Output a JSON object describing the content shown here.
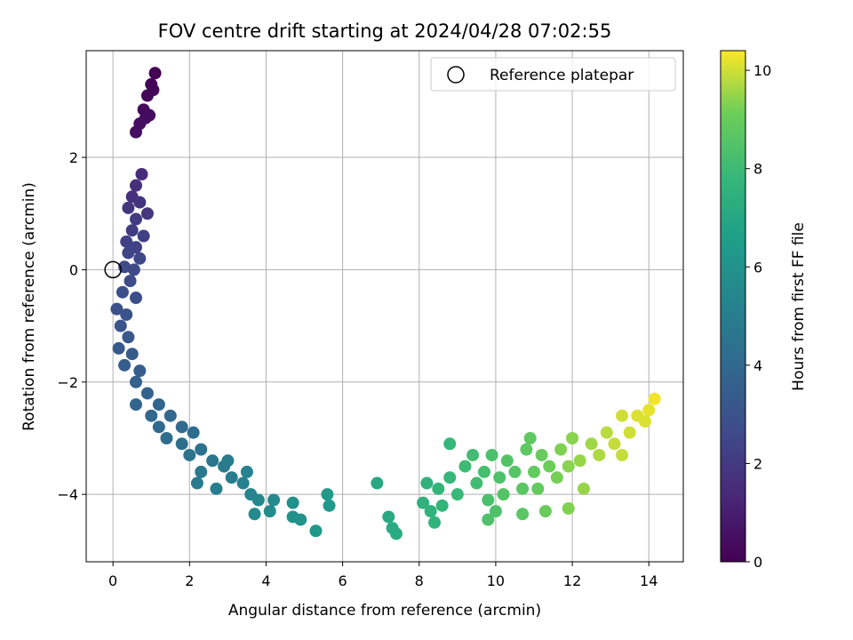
{
  "chart_data": {
    "type": "scatter",
    "title": "FOV centre drift starting at 2024/04/28 07:02:55",
    "xlabel": "Angular distance from reference (arcmin)",
    "ylabel": "Rotation from reference (arcmin)",
    "xlim": [
      -0.7,
      14.9
    ],
    "ylim": [
      -5.2,
      3.9
    ],
    "xticks": [
      "0",
      "2",
      "4",
      "6",
      "8",
      "10",
      "12",
      "14"
    ],
    "yticks": [
      "−4",
      "−2",
      "0",
      "2"
    ],
    "grid": true,
    "legend": {
      "placement": "top-right",
      "entries": [
        "Reference platepar"
      ]
    },
    "reference_point": {
      "x": 0,
      "y": 0
    },
    "colorbar": {
      "label": "Hours from first FF file",
      "range": [
        0,
        10.4
      ],
      "ticks": [
        "0",
        "2",
        "4",
        "6",
        "8",
        "10"
      ],
      "colormap": "viridis"
    },
    "series": [
      {
        "color_by": "hours",
        "points": [
          {
            "x": 0.8,
            "y": 2.85,
            "c": 0.3
          },
          {
            "x": 0.9,
            "y": 3.1,
            "c": 0.2
          },
          {
            "x": 1.0,
            "y": 3.3,
            "c": 0.1
          },
          {
            "x": 1.1,
            "y": 3.5,
            "c": 0.05
          },
          {
            "x": 0.7,
            "y": 2.6,
            "c": 0.4
          },
          {
            "x": 0.6,
            "y": 2.45,
            "c": 0.45
          },
          {
            "x": 0.95,
            "y": 2.75,
            "c": 0.35
          },
          {
            "x": 1.05,
            "y": 3.2,
            "c": 0.15
          },
          {
            "x": 0.85,
            "y": 2.7,
            "c": 0.4
          },
          {
            "x": 0.75,
            "y": 1.7,
            "c": 1.5
          },
          {
            "x": 0.6,
            "y": 1.5,
            "c": 1.6
          },
          {
            "x": 0.5,
            "y": 1.3,
            "c": 1.7
          },
          {
            "x": 0.7,
            "y": 1.2,
            "c": 1.8
          },
          {
            "x": 0.4,
            "y": 1.1,
            "c": 1.9
          },
          {
            "x": 0.9,
            "y": 1.0,
            "c": 1.9
          },
          {
            "x": 0.6,
            "y": 0.9,
            "c": 2.0
          },
          {
            "x": 0.5,
            "y": 0.7,
            "c": 2.1
          },
          {
            "x": 0.8,
            "y": 0.6,
            "c": 2.2
          },
          {
            "x": 0.35,
            "y": 0.5,
            "c": 2.3
          },
          {
            "x": 0.6,
            "y": 0.4,
            "c": 2.3
          },
          {
            "x": 0.4,
            "y": 0.3,
            "c": 2.4
          },
          {
            "x": 0.7,
            "y": 0.2,
            "c": 2.5
          },
          {
            "x": 0.3,
            "y": 0.05,
            "c": 2.6
          },
          {
            "x": 0.55,
            "y": 0.0,
            "c": 2.6
          },
          {
            "x": 0.45,
            "y": -0.2,
            "c": 2.7
          },
          {
            "x": 0.25,
            "y": -0.4,
            "c": 2.8
          },
          {
            "x": 0.6,
            "y": -0.5,
            "c": 2.8
          },
          {
            "x": 0.1,
            "y": -0.7,
            "c": 2.9
          },
          {
            "x": 0.35,
            "y": -0.8,
            "c": 3.0
          },
          {
            "x": 0.2,
            "y": -1.0,
            "c": 3.1
          },
          {
            "x": 0.4,
            "y": -1.2,
            "c": 3.2
          },
          {
            "x": 0.15,
            "y": -1.4,
            "c": 3.3
          },
          {
            "x": 0.5,
            "y": -1.5,
            "c": 3.4
          },
          {
            "x": 0.3,
            "y": -1.7,
            "c": 3.5
          },
          {
            "x": 0.7,
            "y": -1.8,
            "c": 3.5
          },
          {
            "x": 0.6,
            "y": -2.0,
            "c": 3.6
          },
          {
            "x": 0.9,
            "y": -2.2,
            "c": 3.7
          },
          {
            "x": 0.6,
            "y": -2.4,
            "c": 3.8
          },
          {
            "x": 1.2,
            "y": -2.4,
            "c": 3.8
          },
          {
            "x": 1.0,
            "y": -2.6,
            "c": 3.9
          },
          {
            "x": 1.5,
            "y": -2.6,
            "c": 4.0
          },
          {
            "x": 1.2,
            "y": -2.8,
            "c": 4.0
          },
          {
            "x": 1.8,
            "y": -2.8,
            "c": 4.1
          },
          {
            "x": 1.4,
            "y": -3.0,
            "c": 4.2
          },
          {
            "x": 2.1,
            "y": -2.9,
            "c": 4.2
          },
          {
            "x": 1.8,
            "y": -3.1,
            "c": 4.3
          },
          {
            "x": 2.3,
            "y": -3.2,
            "c": 4.4
          },
          {
            "x": 2.0,
            "y": -3.3,
            "c": 4.5
          },
          {
            "x": 2.6,
            "y": -3.4,
            "c": 4.6
          },
          {
            "x": 2.3,
            "y": -3.6,
            "c": 4.7
          },
          {
            "x": 2.9,
            "y": -3.5,
            "c": 4.8
          },
          {
            "x": 2.2,
            "y": -3.8,
            "c": 4.8
          },
          {
            "x": 3.1,
            "y": -3.7,
            "c": 4.9
          },
          {
            "x": 2.7,
            "y": -3.9,
            "c": 5.0
          },
          {
            "x": 3.4,
            "y": -3.8,
            "c": 5.1
          },
          {
            "x": 3.0,
            "y": -3.4,
            "c": 4.9
          },
          {
            "x": 3.6,
            "y": -4.0,
            "c": 5.3
          },
          {
            "x": 3.5,
            "y": -3.6,
            "c": 5.2
          },
          {
            "x": 3.8,
            "y": -4.1,
            "c": 5.5
          },
          {
            "x": 4.2,
            "y": -4.1,
            "c": 5.6
          },
          {
            "x": 3.7,
            "y": -4.35,
            "c": 5.6
          },
          {
            "x": 4.1,
            "y": -4.3,
            "c": 5.7
          },
          {
            "x": 4.7,
            "y": -4.15,
            "c": 5.9
          },
          {
            "x": 4.7,
            "y": -4.4,
            "c": 5.9
          },
          {
            "x": 4.9,
            "y": -4.45,
            "c": 6.0
          },
          {
            "x": 5.3,
            "y": -4.65,
            "c": 6.2
          },
          {
            "x": 5.6,
            "y": -4.0,
            "c": 6.3
          },
          {
            "x": 5.65,
            "y": -4.2,
            "c": 6.3
          },
          {
            "x": 6.9,
            "y": -3.8,
            "c": 7.0
          },
          {
            "x": 7.2,
            "y": -4.4,
            "c": 7.1
          },
          {
            "x": 7.3,
            "y": -4.6,
            "c": 7.2
          },
          {
            "x": 7.4,
            "y": -4.7,
            "c": 7.2
          },
          {
            "x": 8.1,
            "y": -4.15,
            "c": 7.5
          },
          {
            "x": 8.2,
            "y": -3.8,
            "c": 7.5
          },
          {
            "x": 8.3,
            "y": -4.3,
            "c": 7.6
          },
          {
            "x": 8.5,
            "y": -3.9,
            "c": 7.7
          },
          {
            "x": 8.6,
            "y": -4.2,
            "c": 7.7
          },
          {
            "x": 8.4,
            "y": -4.5,
            "c": 7.6
          },
          {
            "x": 8.8,
            "y": -3.7,
            "c": 7.8
          },
          {
            "x": 9.0,
            "y": -4.0,
            "c": 7.9
          },
          {
            "x": 8.8,
            "y": -3.1,
            "c": 7.8
          },
          {
            "x": 9.2,
            "y": -3.5,
            "c": 8.0
          },
          {
            "x": 9.4,
            "y": -3.3,
            "c": 8.1
          },
          {
            "x": 9.5,
            "y": -3.8,
            "c": 8.1
          },
          {
            "x": 9.7,
            "y": -3.6,
            "c": 8.2
          },
          {
            "x": 9.9,
            "y": -3.3,
            "c": 8.3
          },
          {
            "x": 9.8,
            "y": -4.1,
            "c": 8.3
          },
          {
            "x": 10.1,
            "y": -3.7,
            "c": 8.4
          },
          {
            "x": 10.3,
            "y": -3.4,
            "c": 8.5
          },
          {
            "x": 10.2,
            "y": -4.0,
            "c": 8.5
          },
          {
            "x": 10.5,
            "y": -3.6,
            "c": 8.6
          },
          {
            "x": 10.7,
            "y": -3.9,
            "c": 8.7
          },
          {
            "x": 10.8,
            "y": -3.2,
            "c": 8.8
          },
          {
            "x": 11.0,
            "y": -3.6,
            "c": 8.9
          },
          {
            "x": 11.1,
            "y": -3.9,
            "c": 8.9
          },
          {
            "x": 11.2,
            "y": -3.3,
            "c": 9.0
          },
          {
            "x": 11.4,
            "y": -3.5,
            "c": 9.1
          },
          {
            "x": 11.3,
            "y": -4.3,
            "c": 9.0
          },
          {
            "x": 11.6,
            "y": -3.7,
            "c": 9.2
          },
          {
            "x": 11.7,
            "y": -3.2,
            "c": 9.3
          },
          {
            "x": 11.9,
            "y": -3.5,
            "c": 9.4
          },
          {
            "x": 12.0,
            "y": -3.0,
            "c": 9.4
          },
          {
            "x": 11.9,
            "y": -4.25,
            "c": 9.3
          },
          {
            "x": 12.2,
            "y": -3.4,
            "c": 9.5
          },
          {
            "x": 12.3,
            "y": -3.9,
            "c": 9.5
          },
          {
            "x": 12.5,
            "y": -3.1,
            "c": 9.6
          },
          {
            "x": 12.7,
            "y": -3.3,
            "c": 9.7
          },
          {
            "x": 12.9,
            "y": -2.9,
            "c": 9.8
          },
          {
            "x": 13.1,
            "y": -3.1,
            "c": 9.9
          },
          {
            "x": 13.3,
            "y": -2.6,
            "c": 10.0
          },
          {
            "x": 13.5,
            "y": -2.9,
            "c": 10.0
          },
          {
            "x": 13.7,
            "y": -2.6,
            "c": 10.1
          },
          {
            "x": 13.9,
            "y": -2.7,
            "c": 10.1
          },
          {
            "x": 14.0,
            "y": -2.5,
            "c": 10.2
          },
          {
            "x": 14.15,
            "y": -2.3,
            "c": 10.3
          },
          {
            "x": 13.3,
            "y": -3.3,
            "c": 9.9
          },
          {
            "x": 10.7,
            "y": -4.35,
            "c": 8.7
          },
          {
            "x": 9.8,
            "y": -4.45,
            "c": 8.4
          },
          {
            "x": 10.0,
            "y": -4.3,
            "c": 8.4
          },
          {
            "x": 10.9,
            "y": -3.0,
            "c": 8.8
          }
        ]
      }
    ]
  }
}
